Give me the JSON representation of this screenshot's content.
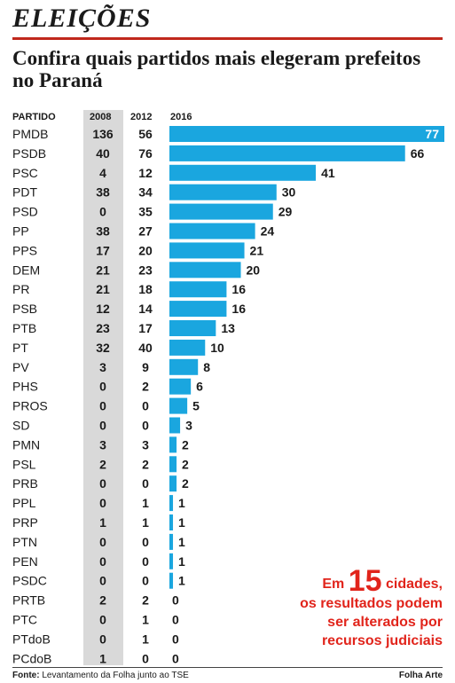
{
  "header": {
    "kicker": "ELEIÇÕES",
    "headline": "Confira quais partidos mais elegeram prefeitos no Paraná"
  },
  "columns": {
    "party": "PARTIDO",
    "y2008": "2008",
    "y2012": "2012",
    "y2016": "2016"
  },
  "chart_data": {
    "type": "bar",
    "orientation": "horizontal",
    "title": "Confira quais partidos mais elegeram prefeitos no Paraná",
    "categories": [
      "PMDB",
      "PSDB",
      "PSC",
      "PDT",
      "PSD",
      "PP",
      "PPS",
      "DEM",
      "PR",
      "PSB",
      "PTB",
      "PT",
      "PV",
      "PHS",
      "PROS",
      "SD",
      "PMN",
      "PSL",
      "PRB",
      "PPL",
      "PRP",
      "PTN",
      "PEN",
      "PSDC",
      "PRTB",
      "PTC",
      "PTdoB",
      "PCdoB"
    ],
    "series": [
      {
        "name": "2016",
        "values": [
          77,
          66,
          41,
          30,
          29,
          24,
          21,
          20,
          16,
          16,
          13,
          10,
          8,
          6,
          5,
          3,
          2,
          2,
          2,
          1,
          1,
          1,
          1,
          1,
          0,
          0,
          0,
          0
        ]
      }
    ],
    "table": {
      "2008": [
        136,
        40,
        4,
        38,
        0,
        38,
        17,
        21,
        21,
        12,
        23,
        32,
        3,
        0,
        0,
        0,
        3,
        2,
        0,
        0,
        1,
        0,
        0,
        0,
        2,
        0,
        0,
        1
      ],
      "2012": [
        56,
        76,
        12,
        34,
        35,
        27,
        20,
        23,
        18,
        14,
        17,
        40,
        9,
        2,
        0,
        0,
        3,
        2,
        0,
        1,
        1,
        0,
        0,
        0,
        2,
        1,
        1,
        0
      ]
    },
    "xlim": [
      0,
      77
    ],
    "grid": false,
    "legend": "none",
    "bar_color": "#1aa6df"
  },
  "callout": {
    "prefix": "Em",
    "number": "15",
    "suffix": "cidades,",
    "line2": "os resultados podem",
    "line3": "ser alterados por",
    "line4": "recursos judiciais"
  },
  "footer": {
    "source_label": "Fonte:",
    "source_text": "Levantamento da Folha junto ao TSE",
    "credit": "Folha Arte"
  }
}
